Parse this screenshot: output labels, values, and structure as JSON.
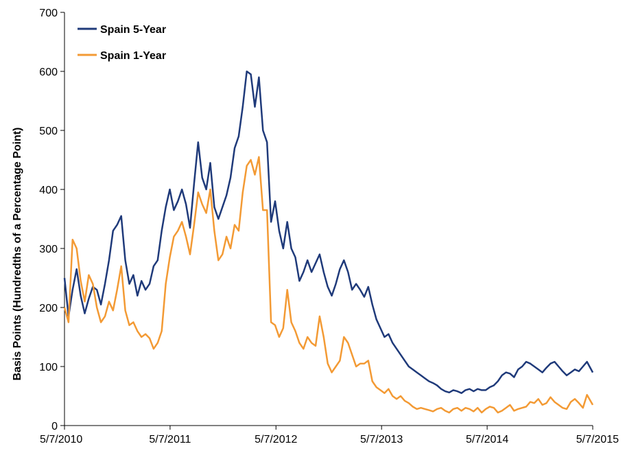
{
  "chart_data": {
    "type": "line",
    "title": "",
    "xlabel": "",
    "ylabel": "Basis Points (Hundredths of a Percentage Point)",
    "ylim": [
      0,
      700
    ],
    "yticks": [
      0,
      100,
      200,
      300,
      400,
      500,
      600,
      700
    ],
    "xlim": [
      "2010-05-07",
      "2015-05-07"
    ],
    "xtick_labels": [
      "5/7/2010",
      "5/7/2011",
      "5/7/2012",
      "5/7/2013",
      "5/7/2014",
      "5/7/2015"
    ],
    "grid": false,
    "legend_position": "top-left",
    "series": [
      {
        "name": "Spain 5-Year",
        "color": "#1f3a7a",
        "points": [
          [
            "2010-05-07",
            250
          ],
          [
            "2010-05-21",
            185
          ],
          [
            "2010-06-04",
            230
          ],
          [
            "2010-06-18",
            265
          ],
          [
            "2010-07-02",
            220
          ],
          [
            "2010-07-16",
            190
          ],
          [
            "2010-07-30",
            215
          ],
          [
            "2010-08-13",
            235
          ],
          [
            "2010-08-27",
            230
          ],
          [
            "2010-09-10",
            205
          ],
          [
            "2010-09-24",
            240
          ],
          [
            "2010-10-08",
            280
          ],
          [
            "2010-10-22",
            330
          ],
          [
            "2010-11-05",
            340
          ],
          [
            "2010-11-19",
            355
          ],
          [
            "2010-12-03",
            280
          ],
          [
            "2010-12-17",
            240
          ],
          [
            "2010-12-31",
            255
          ],
          [
            "2011-01-14",
            220
          ],
          [
            "2011-01-28",
            245
          ],
          [
            "2011-02-11",
            230
          ],
          [
            "2011-02-25",
            240
          ],
          [
            "2011-03-11",
            270
          ],
          [
            "2011-03-25",
            280
          ],
          [
            "2011-04-08",
            330
          ],
          [
            "2011-04-22",
            370
          ],
          [
            "2011-05-06",
            400
          ],
          [
            "2011-05-20",
            365
          ],
          [
            "2011-06-03",
            380
          ],
          [
            "2011-06-17",
            400
          ],
          [
            "2011-07-01",
            375
          ],
          [
            "2011-07-15",
            335
          ],
          [
            "2011-07-29",
            410
          ],
          [
            "2011-08-12",
            480
          ],
          [
            "2011-08-26",
            420
          ],
          [
            "2011-09-09",
            400
          ],
          [
            "2011-09-23",
            445
          ],
          [
            "2011-10-07",
            370
          ],
          [
            "2011-10-21",
            350
          ],
          [
            "2011-11-04",
            370
          ],
          [
            "2011-11-18",
            390
          ],
          [
            "2011-12-02",
            420
          ],
          [
            "2011-12-16",
            470
          ],
          [
            "2011-12-30",
            490
          ],
          [
            "2012-01-13",
            540
          ],
          [
            "2012-01-27",
            600
          ],
          [
            "2012-02-10",
            595
          ],
          [
            "2012-02-24",
            540
          ],
          [
            "2012-03-09",
            590
          ],
          [
            "2012-03-23",
            500
          ],
          [
            "2012-04-06",
            480
          ],
          [
            "2012-04-20",
            345
          ],
          [
            "2012-05-04",
            380
          ],
          [
            "2012-05-18",
            330
          ],
          [
            "2012-06-01",
            300
          ],
          [
            "2012-06-15",
            345
          ],
          [
            "2012-06-29",
            300
          ],
          [
            "2012-07-13",
            285
          ],
          [
            "2012-07-27",
            245
          ],
          [
            "2012-08-10",
            260
          ],
          [
            "2012-08-24",
            280
          ],
          [
            "2012-09-07",
            260
          ],
          [
            "2012-09-21",
            275
          ],
          [
            "2012-10-05",
            290
          ],
          [
            "2012-10-19",
            260
          ],
          [
            "2012-11-02",
            235
          ],
          [
            "2012-11-16",
            220
          ],
          [
            "2012-11-30",
            240
          ],
          [
            "2012-12-14",
            265
          ],
          [
            "2012-12-28",
            280
          ],
          [
            "2013-01-11",
            260
          ],
          [
            "2013-01-25",
            230
          ],
          [
            "2013-02-08",
            240
          ],
          [
            "2013-02-22",
            230
          ],
          [
            "2013-03-08",
            218
          ],
          [
            "2013-03-22",
            235
          ],
          [
            "2013-04-05",
            205
          ],
          [
            "2013-04-19",
            180
          ],
          [
            "2013-05-03",
            165
          ],
          [
            "2013-05-17",
            150
          ],
          [
            "2013-05-31",
            155
          ],
          [
            "2013-06-14",
            140
          ],
          [
            "2013-06-28",
            130
          ],
          [
            "2013-07-12",
            120
          ],
          [
            "2013-07-26",
            110
          ],
          [
            "2013-08-09",
            100
          ],
          [
            "2013-08-23",
            95
          ],
          [
            "2013-09-06",
            90
          ],
          [
            "2013-09-20",
            85
          ],
          [
            "2013-10-04",
            80
          ],
          [
            "2013-10-18",
            75
          ],
          [
            "2013-11-01",
            72
          ],
          [
            "2013-11-15",
            68
          ],
          [
            "2013-11-29",
            62
          ],
          [
            "2013-12-13",
            58
          ],
          [
            "2013-12-27",
            56
          ],
          [
            "2014-01-10",
            60
          ],
          [
            "2014-01-24",
            58
          ],
          [
            "2014-02-07",
            55
          ],
          [
            "2014-02-21",
            60
          ],
          [
            "2014-03-07",
            62
          ],
          [
            "2014-03-21",
            58
          ],
          [
            "2014-04-04",
            62
          ],
          [
            "2014-04-18",
            60
          ],
          [
            "2014-05-02",
            60
          ],
          [
            "2014-05-16",
            65
          ],
          [
            "2014-05-30",
            68
          ],
          [
            "2014-06-13",
            75
          ],
          [
            "2014-06-27",
            85
          ],
          [
            "2014-07-11",
            90
          ],
          [
            "2014-07-25",
            88
          ],
          [
            "2014-08-08",
            82
          ],
          [
            "2014-08-22",
            95
          ],
          [
            "2014-09-05",
            100
          ],
          [
            "2014-09-19",
            108
          ],
          [
            "2014-10-03",
            105
          ],
          [
            "2014-10-17",
            100
          ],
          [
            "2014-10-31",
            95
          ],
          [
            "2014-11-14",
            90
          ],
          [
            "2014-11-28",
            98
          ],
          [
            "2014-12-12",
            105
          ],
          [
            "2014-12-26",
            108
          ],
          [
            "2015-01-09",
            100
          ],
          [
            "2015-01-23",
            92
          ],
          [
            "2015-02-06",
            85
          ],
          [
            "2015-02-20",
            90
          ],
          [
            "2015-03-06",
            95
          ],
          [
            "2015-03-20",
            92
          ],
          [
            "2015-04-03",
            100
          ],
          [
            "2015-04-17",
            108
          ],
          [
            "2015-05-07",
            90
          ]
        ]
      },
      {
        "name": "Spain 1-Year",
        "color": "#f39a34",
        "points": [
          [
            "2010-05-07",
            200
          ],
          [
            "2010-05-21",
            175
          ],
          [
            "2010-06-04",
            315
          ],
          [
            "2010-06-18",
            300
          ],
          [
            "2010-07-02",
            245
          ],
          [
            "2010-07-16",
            210
          ],
          [
            "2010-07-30",
            255
          ],
          [
            "2010-08-13",
            240
          ],
          [
            "2010-08-27",
            200
          ],
          [
            "2010-09-10",
            175
          ],
          [
            "2010-09-24",
            185
          ],
          [
            "2010-10-08",
            210
          ],
          [
            "2010-10-22",
            195
          ],
          [
            "2010-11-05",
            230
          ],
          [
            "2010-11-19",
            270
          ],
          [
            "2010-12-03",
            195
          ],
          [
            "2010-12-17",
            170
          ],
          [
            "2010-12-31",
            175
          ],
          [
            "2011-01-14",
            160
          ],
          [
            "2011-01-28",
            150
          ],
          [
            "2011-02-11",
            155
          ],
          [
            "2011-02-25",
            148
          ],
          [
            "2011-03-11",
            130
          ],
          [
            "2011-03-25",
            140
          ],
          [
            "2011-04-08",
            160
          ],
          [
            "2011-04-22",
            240
          ],
          [
            "2011-05-06",
            285
          ],
          [
            "2011-05-20",
            320
          ],
          [
            "2011-06-03",
            330
          ],
          [
            "2011-06-17",
            345
          ],
          [
            "2011-07-01",
            320
          ],
          [
            "2011-07-15",
            290
          ],
          [
            "2011-07-29",
            340
          ],
          [
            "2011-08-12",
            395
          ],
          [
            "2011-08-26",
            375
          ],
          [
            "2011-09-09",
            360
          ],
          [
            "2011-09-23",
            400
          ],
          [
            "2011-10-07",
            330
          ],
          [
            "2011-10-21",
            280
          ],
          [
            "2011-11-04",
            290
          ],
          [
            "2011-11-18",
            320
          ],
          [
            "2011-12-02",
            300
          ],
          [
            "2011-12-16",
            340
          ],
          [
            "2011-12-30",
            330
          ],
          [
            "2012-01-13",
            395
          ],
          [
            "2012-01-27",
            440
          ],
          [
            "2012-02-10",
            450
          ],
          [
            "2012-02-24",
            425
          ],
          [
            "2012-03-09",
            455
          ],
          [
            "2012-03-23",
            365
          ],
          [
            "2012-04-06",
            365
          ],
          [
            "2012-04-20",
            175
          ],
          [
            "2012-05-04",
            170
          ],
          [
            "2012-05-18",
            150
          ],
          [
            "2012-06-01",
            165
          ],
          [
            "2012-06-15",
            230
          ],
          [
            "2012-06-29",
            175
          ],
          [
            "2012-07-13",
            160
          ],
          [
            "2012-07-27",
            140
          ],
          [
            "2012-08-10",
            130
          ],
          [
            "2012-08-24",
            150
          ],
          [
            "2012-09-07",
            140
          ],
          [
            "2012-09-21",
            135
          ],
          [
            "2012-10-05",
            185
          ],
          [
            "2012-10-19",
            150
          ],
          [
            "2012-11-02",
            105
          ],
          [
            "2012-11-16",
            90
          ],
          [
            "2012-11-30",
            100
          ],
          [
            "2012-12-14",
            110
          ],
          [
            "2012-12-28",
            150
          ],
          [
            "2013-01-11",
            140
          ],
          [
            "2013-01-25",
            120
          ],
          [
            "2013-02-08",
            100
          ],
          [
            "2013-02-22",
            105
          ],
          [
            "2013-03-08",
            105
          ],
          [
            "2013-03-22",
            110
          ],
          [
            "2013-04-05",
            75
          ],
          [
            "2013-04-19",
            65
          ],
          [
            "2013-05-03",
            60
          ],
          [
            "2013-05-17",
            55
          ],
          [
            "2013-05-31",
            62
          ],
          [
            "2013-06-14",
            50
          ],
          [
            "2013-06-28",
            45
          ],
          [
            "2013-07-12",
            50
          ],
          [
            "2013-07-26",
            42
          ],
          [
            "2013-08-09",
            38
          ],
          [
            "2013-08-23",
            32
          ],
          [
            "2013-09-06",
            28
          ],
          [
            "2013-09-20",
            30
          ],
          [
            "2013-10-04",
            28
          ],
          [
            "2013-10-18",
            26
          ],
          [
            "2013-11-01",
            24
          ],
          [
            "2013-11-15",
            28
          ],
          [
            "2013-11-29",
            30
          ],
          [
            "2013-12-13",
            25
          ],
          [
            "2013-12-27",
            22
          ],
          [
            "2014-01-10",
            28
          ],
          [
            "2014-01-24",
            30
          ],
          [
            "2014-02-07",
            25
          ],
          [
            "2014-02-21",
            30
          ],
          [
            "2014-03-07",
            28
          ],
          [
            "2014-03-21",
            24
          ],
          [
            "2014-04-04",
            30
          ],
          [
            "2014-04-18",
            22
          ],
          [
            "2014-05-02",
            28
          ],
          [
            "2014-05-16",
            32
          ],
          [
            "2014-05-30",
            30
          ],
          [
            "2014-06-13",
            22
          ],
          [
            "2014-06-27",
            25
          ],
          [
            "2014-07-11",
            30
          ],
          [
            "2014-07-25",
            35
          ],
          [
            "2014-08-08",
            25
          ],
          [
            "2014-08-22",
            28
          ],
          [
            "2014-09-05",
            30
          ],
          [
            "2014-09-19",
            32
          ],
          [
            "2014-10-03",
            40
          ],
          [
            "2014-10-17",
            38
          ],
          [
            "2014-10-31",
            45
          ],
          [
            "2014-11-14",
            35
          ],
          [
            "2014-11-28",
            38
          ],
          [
            "2014-12-12",
            48
          ],
          [
            "2014-12-26",
            40
          ],
          [
            "2015-01-09",
            35
          ],
          [
            "2015-01-23",
            30
          ],
          [
            "2015-02-06",
            28
          ],
          [
            "2015-02-20",
            40
          ],
          [
            "2015-03-06",
            45
          ],
          [
            "2015-03-20",
            38
          ],
          [
            "2015-04-03",
            30
          ],
          [
            "2015-04-17",
            52
          ],
          [
            "2015-05-07",
            35
          ]
        ]
      }
    ]
  }
}
